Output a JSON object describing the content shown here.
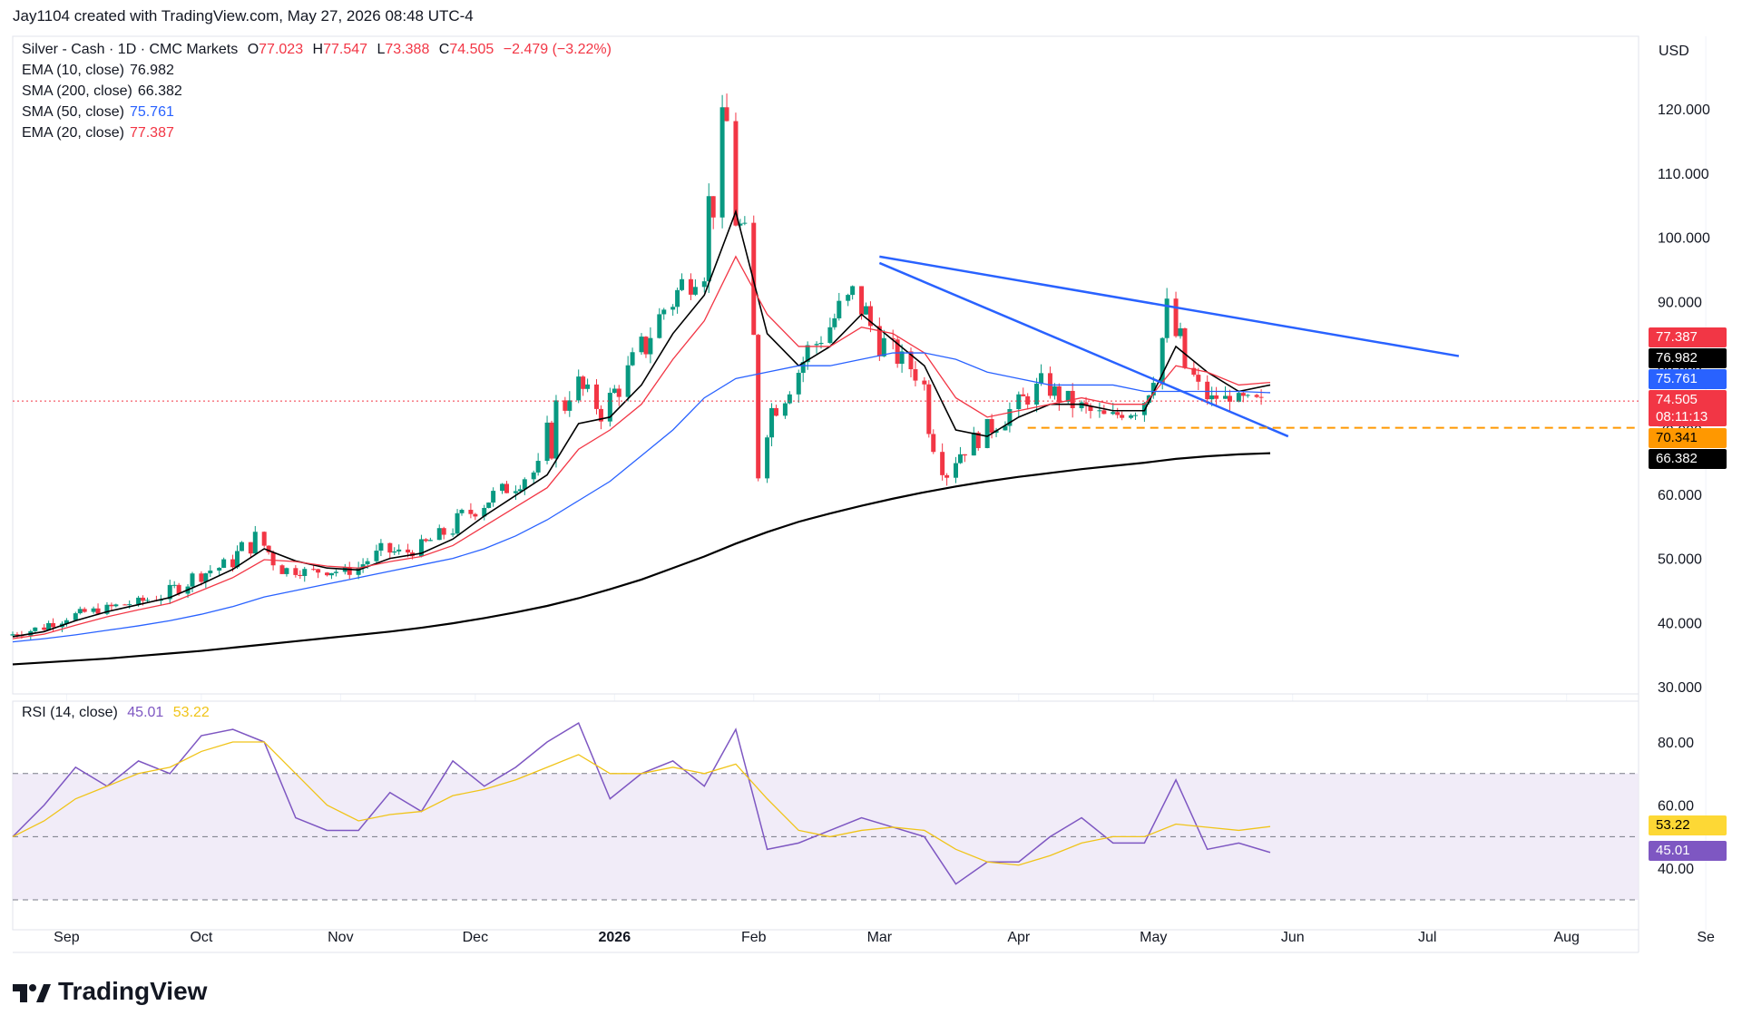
{
  "header": {
    "credit": "Jay1104 created with TradingView.com, May 27, 2026 08:48 UTC-4"
  },
  "symbol": {
    "name": "Silver - Cash · 1D · CMC Markets",
    "open_label": "O",
    "open": "77.023",
    "high_label": "H",
    "high": "77.547",
    "low_label": "L",
    "low": "73.388",
    "close_label": "C",
    "close": "74.505",
    "change": "−2.479 (−3.22%)"
  },
  "indicators": [
    {
      "label": "EMA (10, close)",
      "value": "76.982",
      "color": "#000000"
    },
    {
      "label": "SMA (200, close)",
      "value": "66.382",
      "color": "#000000"
    },
    {
      "label": "SMA (50, close)",
      "value": "75.761",
      "color": "#2962ff"
    },
    {
      "label": "EMA (20, close)",
      "value": "77.387",
      "color": "#f23645"
    }
  ],
  "currency": "USD",
  "price_axis": [
    "120.000",
    "110.000",
    "100.000",
    "90.000",
    "80.000",
    "70.000",
    "60.000",
    "50.000",
    "40.000",
    "30.000"
  ],
  "price_labels": [
    {
      "text": "77.387",
      "color": "#f23645"
    },
    {
      "text": "76.982",
      "color": "#000000"
    },
    {
      "text": "75.761",
      "color": "#2962ff"
    },
    {
      "text": "74.505",
      "countdown": "08:11:13",
      "color": "#f23645"
    },
    {
      "text": "70.341",
      "color": "#ff9800",
      "textcolor": "#000000"
    },
    {
      "text": "66.382",
      "color": "#000000"
    }
  ],
  "rsi": {
    "label": "RSI (14, close)",
    "value": "45.01",
    "ma_value": "53.22",
    "axis": [
      "80.00",
      "60.00",
      "40.00"
    ]
  },
  "time_axis": [
    "Sep",
    "Oct",
    "Nov",
    "Dec",
    "2026",
    "Feb",
    "Mar",
    "Apr",
    "May",
    "Jun",
    "Jul",
    "Aug",
    "Se"
  ],
  "brand": "TradingView",
  "colors": {
    "up": "#089981",
    "down": "#f23645",
    "ema10": "#000000",
    "ema20": "#f23645",
    "sma50": "#2962ff",
    "sma200": "#000000",
    "trendline": "#2962ff",
    "support": "#ff9800",
    "rsi": "#7e57c2",
    "rsi_ma": "#fdd835"
  },
  "chart_data": {
    "type": "line",
    "note_series": "candlestick closes (approx) sampled weekly, with moving averages",
    "x": [
      "2025-08-20",
      "2025-08-27",
      "2025-09-03",
      "2025-09-10",
      "2025-09-17",
      "2025-09-24",
      "2025-10-01",
      "2025-10-08",
      "2025-10-15",
      "2025-10-22",
      "2025-10-29",
      "2025-11-05",
      "2025-11-12",
      "2025-11-19",
      "2025-11-26",
      "2025-12-03",
      "2025-12-10",
      "2025-12-17",
      "2025-12-24",
      "2025-12-31",
      "2026-01-07",
      "2026-01-14",
      "2026-01-21",
      "2026-01-28",
      "2026-02-04",
      "2026-02-11",
      "2026-02-18",
      "2026-02-25",
      "2026-03-04",
      "2026-03-11",
      "2026-03-18",
      "2026-03-25",
      "2026-04-01",
      "2026-04-08",
      "2026-04-15",
      "2026-04-22",
      "2026-04-29",
      "2026-05-06",
      "2026-05-13",
      "2026-05-20",
      "2026-05-27"
    ],
    "series": [
      {
        "name": "Silver - Cash · 1D · CMC Markets",
        "values": [
          38,
          39,
          41,
          42,
          43,
          44,
          47,
          49,
          53,
          48,
          48,
          48,
          51,
          51,
          54,
          58,
          61,
          64,
          78,
          73,
          80,
          89,
          95,
          117,
          70,
          78,
          85,
          91,
          83,
          79,
          65,
          69,
          73,
          77,
          74,
          72,
          73,
          87,
          75,
          75,
          74.5
        ]
      },
      {
        "name": "EMA (10, close)",
        "values": [
          37.8,
          38.6,
          40.3,
          41.7,
          42.8,
          43.9,
          46,
          48.3,
          51.5,
          49.6,
          48.5,
          48.2,
          50,
          50.8,
          53,
          56.6,
          59.8,
          63,
          71,
          72,
          77,
          85,
          91,
          104,
          85,
          80,
          83,
          88,
          84,
          80,
          70,
          69,
          72,
          74,
          74,
          73,
          73,
          83,
          79,
          76,
          77
        ]
      },
      {
        "name": "EMA (20, close)",
        "values": [
          37.5,
          38.2,
          39.6,
          40.9,
          42,
          43,
          45,
          47,
          49.8,
          49.5,
          48.8,
          48.5,
          49.5,
          50.3,
          52,
          55,
          58,
          61,
          67,
          70,
          74,
          81,
          87,
          97,
          88,
          83,
          83,
          86,
          85,
          82,
          75,
          72,
          73,
          74,
          75,
          74,
          74,
          80,
          79,
          77,
          77.4
        ]
      },
      {
        "name": "SMA (50, close)",
        "values": [
          37,
          37.5,
          38.1,
          38.8,
          39.5,
          40.3,
          41.3,
          42.5,
          44,
          45,
          46,
          47,
          48,
          49,
          50,
          51.5,
          53.5,
          56,
          59,
          62,
          66,
          70,
          75,
          78,
          79,
          80,
          80,
          81,
          82,
          82,
          81,
          79,
          78,
          77,
          77,
          77,
          76,
          76,
          76,
          76,
          75.8
        ]
      },
      {
        "name": "SMA (200, close)",
        "values": [
          33.5,
          33.8,
          34.1,
          34.4,
          34.8,
          35.2,
          35.6,
          36.1,
          36.6,
          37.1,
          37.6,
          38.1,
          38.6,
          39.2,
          39.9,
          40.7,
          41.6,
          42.6,
          43.8,
          45.2,
          46.7,
          48.5,
          50.3,
          52.3,
          54.1,
          55.7,
          57,
          58.2,
          59.3,
          60.3,
          61.2,
          62,
          62.7,
          63.3,
          63.9,
          64.4,
          64.9,
          65.5,
          65.9,
          66.2,
          66.382
        ]
      }
    ],
    "trendlines": [
      {
        "name": "upper",
        "from": [
          "2026-03-01",
          97
        ],
        "to": [
          "2026-07-08",
          81.5
        ]
      },
      {
        "name": "lower",
        "from": [
          "2026-03-01",
          96
        ],
        "to": [
          "2026-05-31",
          69
        ]
      }
    ],
    "support_level": 70.341,
    "rsi_values": [
      50,
      60,
      72,
      66,
      74,
      70,
      82,
      84,
      80,
      56,
      52,
      52,
      64,
      58,
      74,
      66,
      72,
      80,
      86,
      62,
      70,
      74,
      66,
      84,
      46,
      48,
      52,
      56,
      53,
      50,
      35,
      42,
      42,
      50,
      56,
      48,
      48,
      68,
      46,
      48,
      45.01
    ],
    "rsi_ma_values": [
      50,
      55,
      62,
      66,
      70,
      72,
      77,
      80,
      80,
      70,
      60,
      55,
      57,
      58,
      63,
      65,
      68,
      72,
      76,
      70,
      70,
      72,
      70,
      73,
      62,
      52,
      50,
      52,
      53,
      52,
      46,
      42,
      41,
      44,
      48,
      50,
      50,
      54,
      53,
      52,
      53.22
    ],
    "ylim": [
      30,
      120
    ],
    "rsi_ylim": [
      30,
      90
    ],
    "xlabel": "",
    "ylabel": "",
    "grid": true,
    "legend": "top-left"
  }
}
